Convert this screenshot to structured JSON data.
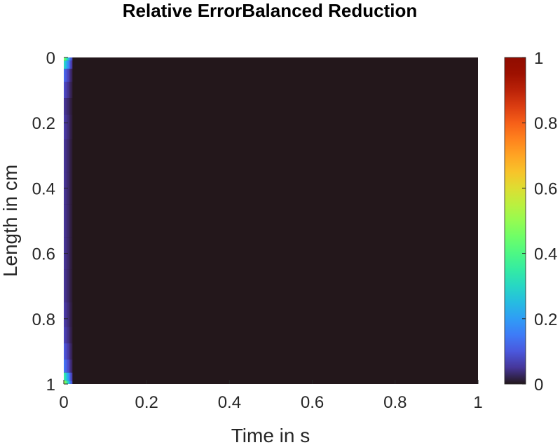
{
  "chart_data": {
    "type": "heatmap",
    "title": "Relative ErrorBalanced Reduction",
    "xlabel": "Time in s",
    "ylabel": "Length in cm",
    "xlim": [
      0,
      1
    ],
    "ylim": [
      0,
      1
    ],
    "y_direction": "reversed",
    "xticks": [
      "0",
      "0.2",
      "0.4",
      "0.6",
      "0.8",
      "1"
    ],
    "yticks": [
      "0",
      "0.2",
      "0.4",
      "0.6",
      "0.8",
      "1"
    ],
    "colorbar": {
      "colormap": "turbo",
      "range": [
        0,
        1
      ],
      "ticks": [
        "0",
        "0.2",
        "0.4",
        "0.6",
        "0.8",
        "1"
      ]
    },
    "background_value": 0.0,
    "edge_column": {
      "x_range": [
        0,
        0.02
      ],
      "y_values": [
        0.0,
        0.02,
        0.05,
        0.1,
        0.15,
        0.2,
        0.3,
        0.4,
        0.5,
        0.6,
        0.7,
        0.8,
        0.85,
        0.9,
        0.95,
        0.98,
        1.0
      ],
      "left_values": [
        0.45,
        0.3,
        0.12,
        0.08,
        0.05,
        0.06,
        0.05,
        0.05,
        0.05,
        0.05,
        0.05,
        0.06,
        0.07,
        0.1,
        0.14,
        0.35,
        0.5
      ]
    },
    "grid": false
  }
}
